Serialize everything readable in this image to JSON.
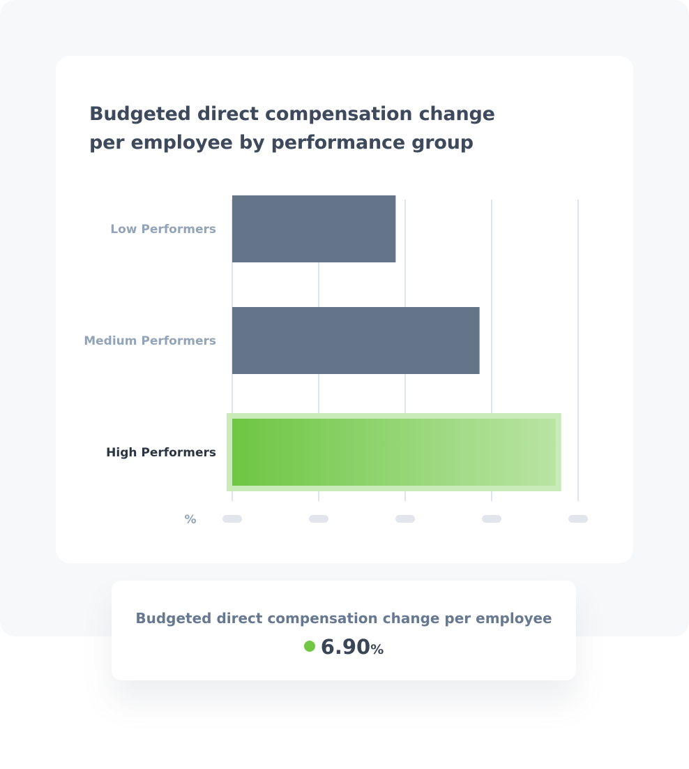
{
  "chart_data": {
    "type": "bar",
    "orientation": "horizontal",
    "title": "Budgeted direct compensation change per employee by performance group",
    "categories": [
      "Low Performers",
      "Medium Performers",
      "High Performers"
    ],
    "values": [
      3.78,
      5.72,
      7.48
    ],
    "highlight_category": "High Performers",
    "xlabel": "%",
    "xlim": [
      0,
      8
    ],
    "x_tick_count": 5,
    "x_tick_labels_shown": false,
    "grid": true,
    "colors": {
      "bar": "#647489",
      "highlight_start": "#6dc643",
      "highlight_end": "#b9e4a3",
      "highlight_frame": "#c9ebba",
      "grid": "#dfe3ea",
      "tick_placeholder": "#e2e6ec",
      "label": "#93a3b8",
      "highlight_label": "#2b3440"
    }
  },
  "summary": {
    "label": "Budgeted direct compensation change per employee",
    "value": "6.90",
    "unit": "%",
    "dot_color": "#72c844"
  }
}
